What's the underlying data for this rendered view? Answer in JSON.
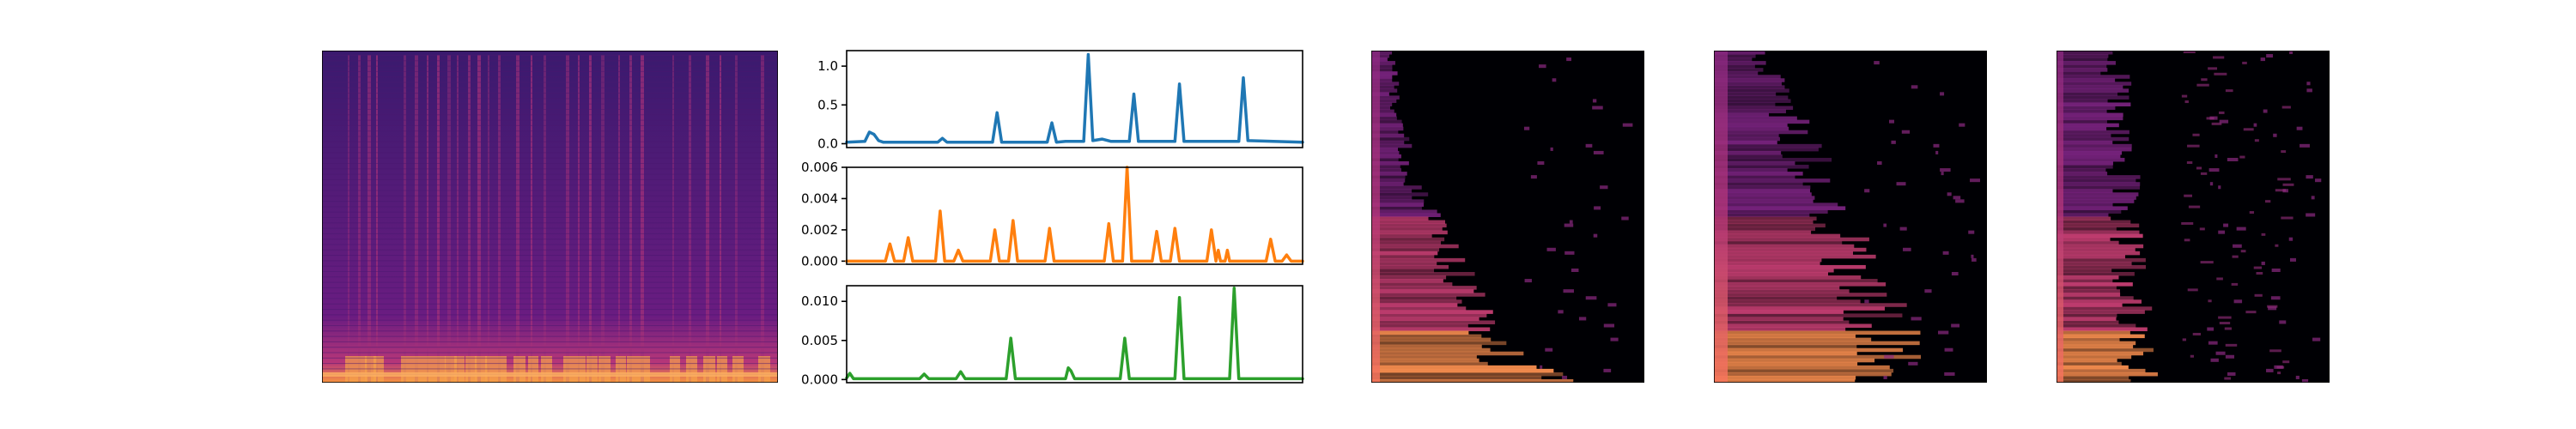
{
  "chart_data": [
    {
      "type": "heatmap",
      "description_colormap": "magma",
      "pattern": "vertical-striped",
      "background_color": "#3a1a6e"
    },
    {
      "type": "line",
      "panels": [
        {
          "color": "#1f77b4",
          "ylim": [
            -0.05,
            1.2
          ],
          "yticks": [
            0.0,
            0.5,
            1.0
          ],
          "ytick_labels": [
            "0.0",
            "0.5",
            "1.0"
          ],
          "x": [
            0,
            4,
            5,
            6,
            7,
            8,
            12,
            20,
            21,
            22,
            32,
            33,
            34,
            44,
            45,
            46,
            48,
            52,
            53,
            54,
            56,
            58,
            62,
            63,
            64,
            72,
            73,
            74,
            86,
            87,
            88,
            100
          ],
          "values": [
            0.02,
            0.03,
            0.15,
            0.12,
            0.04,
            0.02,
            0.02,
            0.02,
            0.07,
            0.02,
            0.02,
            0.4,
            0.02,
            0.02,
            0.27,
            0.02,
            0.03,
            0.03,
            1.15,
            0.04,
            0.06,
            0.03,
            0.03,
            0.64,
            0.03,
            0.03,
            0.77,
            0.03,
            0.03,
            0.85,
            0.04,
            0.02
          ]
        },
        {
          "color": "#ff7f0e",
          "ylim": [
            -0.0002,
            0.006
          ],
          "yticks": [
            0.0,
            0.002,
            0.004,
            0.006
          ],
          "ytick_labels": [
            "0.000",
            "0.002",
            "0.004",
            "0.006"
          ],
          "x": [
            0,
            8.5,
            9.5,
            10.5,
            12.5,
            13.5,
            14.5,
            19.5,
            20.5,
            21.5,
            23.5,
            24.5,
            25.5,
            31.5,
            32.5,
            33.5,
            35.5,
            36.5,
            37.5,
            43.5,
            44.5,
            45.5,
            56.5,
            57.5,
            58.5,
            60.5,
            61.5,
            62.5,
            67,
            68,
            69,
            71,
            72,
            73,
            79,
            80,
            81,
            81.5,
            82,
            82.5,
            83,
            83.5,
            84,
            84.5,
            92,
            93,
            94,
            95.5,
            96.5,
            97.5,
            100
          ],
          "values": [
            0.0,
            0.0,
            0.0011,
            0.0,
            0.0,
            0.0015,
            0.0,
            0.0,
            0.0032,
            0.0,
            0.0,
            0.0007,
            0.0,
            0.0,
            0.002,
            0.0,
            0.0,
            0.0026,
            0.0,
            0.0,
            0.0021,
            0.0,
            0.0,
            0.0024,
            0.0,
            0.0,
            0.006,
            0.0,
            0.0,
            0.0019,
            0.0,
            0.0,
            0.0021,
            0.0,
            0.0,
            0.002,
            0.0,
            0.0007,
            0.0,
            0.0,
            0.0,
            0.0007,
            0.0,
            0.0,
            0.0,
            0.0014,
            0.0,
            0.0,
            0.0004,
            0.0,
            0.0
          ]
        },
        {
          "color": "#2ca02c",
          "ylim": [
            -0.0004,
            0.012
          ],
          "yticks": [
            0.0,
            0.005,
            0.01
          ],
          "ytick_labels": [
            "0.000",
            "0.005",
            "0.010"
          ],
          "x": [
            0,
            0.7,
            1.5,
            3,
            16,
            17,
            18,
            24,
            25,
            26,
            35,
            36,
            37,
            47,
            48,
            48.6,
            49.2,
            50,
            51,
            60,
            61,
            62,
            72,
            73,
            74,
            84,
            85,
            86,
            100
          ],
          "values": [
            0.0002,
            0.0008,
            0.0001,
            0.0001,
            0.0001,
            0.0007,
            0.0001,
            0.0001,
            0.001,
            0.0001,
            0.0001,
            0.0053,
            0.0001,
            0.0001,
            0.0001,
            0.0015,
            0.0011,
            0.0001,
            0.0001,
            0.0001,
            0.0053,
            0.0001,
            0.0001,
            0.0105,
            0.0001,
            0.0001,
            0.0117,
            0.0001,
            0.0001
          ]
        }
      ]
    },
    {
      "type": "heatmap",
      "description_colormap": "magma",
      "pattern": "bright-left-edge-decaying-right",
      "background_color": "#000004"
    },
    {
      "type": "heatmap",
      "description_colormap": "magma",
      "pattern": "bright-left-triangle-decaying-right",
      "background_color": "#000004"
    },
    {
      "type": "heatmap",
      "description_colormap": "magma",
      "pattern": "bright-left-block-with-sparse-right",
      "background_color": "#000004"
    }
  ]
}
